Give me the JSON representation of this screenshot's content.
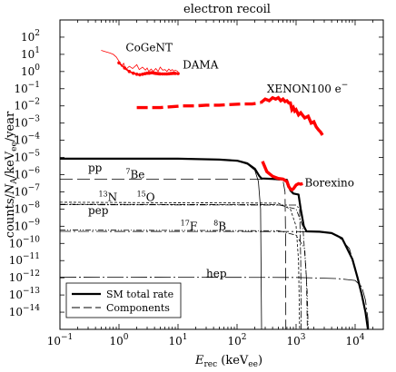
{
  "chart_data": {
    "type": "line",
    "title": "electron recoil",
    "xlabel": {
      "main": "E",
      "sub": "rec",
      "rest": " (keV",
      "unit_sub": "ee",
      "end": ")"
    },
    "ylabel": {
      "pre": "counts/",
      "n": "N",
      "sub": "A",
      "rest": "/keV",
      "unit_sub": "ee",
      "end": "/year"
    },
    "x_scale": "log",
    "y_scale": "log",
    "xlim": [
      0.1,
      30000
    ],
    "ylim": [
      1e-15,
      1000
    ],
    "x_ticks": [
      {
        "v": 0.1,
        "b": "10",
        "e": "−1"
      },
      {
        "v": 1,
        "b": "10",
        "e": "0"
      },
      {
        "v": 10,
        "b": "10",
        "e": "1"
      },
      {
        "v": 100,
        "b": "10",
        "e": "2"
      },
      {
        "v": 1000,
        "b": "10",
        "e": "3"
      },
      {
        "v": 10000,
        "b": "10",
        "e": "4"
      }
    ],
    "y_ticks": [
      {
        "v": 100,
        "b": "10",
        "e": "2"
      },
      {
        "v": 1,
        "b": "10",
        "e": "0"
      },
      {
        "v": 0.01,
        "b": "10",
        "e": "−2"
      },
      {
        "v": 0.0001,
        "b": "10",
        "e": "−4"
      },
      {
        "v": 1e-06,
        "b": "10",
        "e": "−6"
      },
      {
        "v": 1e-08,
        "b": "10",
        "e": "−8"
      },
      {
        "v": 1e-10,
        "b": "10",
        "e": "−10"
      },
      {
        "v": 1e-12,
        "b": "10",
        "e": "−12"
      },
      {
        "v": 1e-14,
        "b": "10",
        "e": "−14"
      }
    ],
    "y_ticks_plain": [
      {
        "v": 10,
        "t": "10"
      },
      {
        "v": 0.1,
        "t": "10"
      },
      {
        "v": 0.001,
        "t": "10"
      },
      {
        "v": 1e-05,
        "t": "10"
      },
      {
        "v": 1e-07,
        "t": "10"
      },
      {
        "v": 1e-09,
        "t": "10"
      },
      {
        "v": 1e-11,
        "t": "10"
      },
      {
        "v": 1e-13,
        "t": "10"
      }
    ],
    "y_ticks_plain_exp": [
      "1",
      "−1",
      "−3",
      "−5",
      "−7",
      "−9",
      "−11",
      "−13"
    ],
    "series": [
      {
        "name": "SM total rate",
        "style": "total",
        "color": "#000000",
        "points": [
          [
            0.1,
            8.5e-06
          ],
          [
            10,
            8.5e-06
          ],
          [
            50,
            7.5e-06
          ],
          [
            100,
            6.5e-06
          ],
          [
            150,
            4.5e-06
          ],
          [
            200,
            2.2e-06
          ],
          [
            240,
            8e-07
          ],
          [
            260,
            6e-07
          ],
          [
            500,
            5.5e-07
          ],
          [
            700,
            5e-07
          ],
          [
            800,
            1.2e-07
          ],
          [
            900,
            8e-08
          ],
          [
            1100,
            7e-08
          ],
          [
            1200,
            1e-08
          ],
          [
            1350,
            1e-09
          ],
          [
            1500,
            5e-10
          ],
          [
            2500,
            4.8e-10
          ],
          [
            4000,
            4e-10
          ],
          [
            6000,
            2e-10
          ],
          [
            9000,
            1.2e-11
          ],
          [
            11000,
            1e-12
          ],
          [
            13000,
            1e-13
          ],
          [
            15000,
            1e-14
          ],
          [
            16500,
            1e-15
          ]
        ]
      },
      {
        "name": "pp",
        "style": "component",
        "color": "#000000",
        "points": [
          [
            0.1,
            8.3e-06
          ],
          [
            10,
            8.3e-06
          ],
          [
            50,
            7.5e-06
          ],
          [
            100,
            6.3e-06
          ],
          [
            150,
            4e-06
          ],
          [
            200,
            1.8e-06
          ],
          [
            230,
            4e-07
          ],
          [
            250,
            1e-08
          ],
          [
            260,
            1e-15
          ]
        ]
      },
      {
        "name": "7Be",
        "style": "component",
        "color": "#000000",
        "points": [
          [
            0.1,
            5.5e-07
          ],
          [
            100,
            5.5e-07
          ],
          [
            400,
            5.3e-07
          ],
          [
            600,
            4.5e-07
          ],
          [
            650,
            1e-07
          ],
          [
            665,
            1e-10
          ],
          [
            670,
            1e-15
          ]
        ]
      },
      {
        "name": "13N",
        "style": "component",
        "color": "#000000",
        "points": [
          [
            0.1,
            2.5e-08
          ],
          [
            500,
            2.2e-08
          ],
          [
            800,
            1e-08
          ],
          [
            1000,
            1e-09
          ],
          [
            1100,
            1e-11
          ],
          [
            1150,
            1e-15
          ]
        ]
      },
      {
        "name": "15O",
        "style": "component",
        "color": "#000000",
        "points": [
          [
            0.1,
            1.9e-08
          ],
          [
            500,
            1.8e-08
          ],
          [
            1000,
            1e-08
          ],
          [
            1300,
            1e-09
          ],
          [
            1500,
            1e-12
          ],
          [
            1550,
            1e-15
          ]
        ]
      },
      {
        "name": "pep",
        "style": "component",
        "color": "#000000",
        "points": [
          [
            0.1,
            1.8e-08
          ],
          [
            1000,
            1.7e-08
          ],
          [
            1150,
            1e-08
          ],
          [
            1200,
            1e-11
          ],
          [
            1220,
            1e-15
          ]
        ]
      },
      {
        "name": "17F",
        "style": "component",
        "color": "#000000",
        "points": [
          [
            0.1,
            6e-10
          ],
          [
            500,
            5.5e-10
          ],
          [
            1000,
            3e-10
          ],
          [
            1400,
            5e-11
          ],
          [
            1550,
            1e-13
          ],
          [
            1600,
            1e-15
          ]
        ]
      },
      {
        "name": "8B",
        "style": "component",
        "color": "#000000",
        "points": [
          [
            0.1,
            5e-10
          ],
          [
            1000,
            4.9e-10
          ],
          [
            3000,
            4.5e-10
          ],
          [
            5000,
            3e-10
          ],
          [
            8000,
            5e-11
          ],
          [
            11000,
            1e-12
          ],
          [
            13000,
            1e-13
          ],
          [
            15000,
            1e-14
          ],
          [
            16500,
            1e-15
          ]
        ]
      },
      {
        "name": "hep",
        "style": "component",
        "color": "#000000",
        "points": [
          [
            0.1,
            1.1e-12
          ],
          [
            1000,
            1.05e-12
          ],
          [
            5000,
            9e-13
          ],
          [
            10000,
            7e-13
          ],
          [
            13000,
            3e-13
          ],
          [
            15000,
            5e-14
          ],
          [
            16500,
            4e-15
          ],
          [
            17000,
            1e-15
          ]
        ]
      },
      {
        "name": "CoGeNT",
        "style": "data-thin",
        "color": "#ff0000",
        "points": [
          [
            0.5,
            17
          ],
          [
            0.6,
            14
          ],
          [
            0.7,
            12
          ],
          [
            0.8,
            10
          ],
          [
            0.9,
            7
          ],
          [
            1.0,
            4
          ],
          [
            1.1,
            2
          ],
          [
            1.2,
            3
          ],
          [
            1.3,
            1.3
          ],
          [
            1.5,
            2
          ],
          [
            1.7,
            1.5
          ],
          [
            2.0,
            2.5
          ],
          [
            2.2,
            1.3
          ],
          [
            2.5,
            1.8
          ],
          [
            2.8,
            1.2
          ],
          [
            3.0,
            1.6
          ],
          [
            3.2,
            1.0
          ],
          [
            3.5,
            1.4
          ],
          [
            3.8,
            1.0
          ],
          [
            4.2,
            1.5
          ],
          [
            4.6,
            1.0
          ],
          [
            5.0,
            1.8
          ],
          [
            5.5,
            1.2
          ],
          [
            6.0,
            1.3
          ],
          [
            6.5,
            1.0
          ],
          [
            7.0,
            1.4
          ],
          [
            7.5,
            1.1
          ],
          [
            8.0,
            1.3
          ],
          [
            8.5,
            1.05
          ],
          [
            9.0,
            1.2
          ],
          [
            10.0,
            1.0
          ]
        ]
      },
      {
        "name": "DAMA",
        "style": "data-dots",
        "color": "#ff0000",
        "points": [
          [
            1.0,
            3.2
          ],
          [
            1.25,
            1.6
          ],
          [
            1.5,
            1.0
          ],
          [
            1.75,
            0.8
          ],
          [
            2.0,
            0.7
          ],
          [
            2.25,
            0.65
          ],
          [
            2.5,
            0.7
          ],
          [
            2.75,
            0.75
          ],
          [
            3.0,
            0.8
          ],
          [
            3.25,
            0.8
          ],
          [
            3.5,
            0.85
          ],
          [
            3.75,
            0.85
          ],
          [
            4.0,
            0.8
          ],
          [
            4.25,
            0.78
          ],
          [
            4.5,
            0.76
          ],
          [
            4.75,
            0.74
          ],
          [
            5.0,
            0.73
          ],
          [
            5.5,
            0.72
          ],
          [
            6.0,
            0.72
          ],
          [
            6.5,
            0.72
          ],
          [
            7.0,
            0.74
          ],
          [
            7.5,
            0.76
          ],
          [
            8.0,
            0.78
          ],
          [
            8.5,
            0.79
          ],
          [
            9.0,
            0.78
          ],
          [
            10.0,
            0.76
          ]
        ]
      },
      {
        "name": "XENON100 e⁻",
        "style": "data-thick",
        "color": "#ff0000",
        "points": [
          [
            2,
            0.008
          ],
          [
            3,
            0.008
          ],
          [
            5,
            0.008
          ],
          [
            8,
            0.009
          ],
          [
            12,
            0.01
          ],
          [
            20,
            0.01
          ],
          [
            30,
            0.011
          ],
          [
            50,
            0.011
          ],
          [
            80,
            0.012
          ],
          [
            120,
            0.013
          ],
          [
            180,
            0.013
          ],
          [
            250,
            0.015
          ],
          [
            300,
            0.025
          ],
          [
            350,
            0.02
          ],
          [
            400,
            0.03
          ],
          [
            450,
            0.025
          ],
          [
            500,
            0.03
          ],
          [
            550,
            0.02
          ],
          [
            600,
            0.025
          ],
          [
            650,
            0.018
          ],
          [
            700,
            0.02
          ],
          [
            750,
            0.015
          ],
          [
            800,
            0.015
          ],
          [
            850,
            0.006
          ],
          [
            900,
            0.008
          ],
          [
            950,
            0.005
          ],
          [
            1000,
            0.006
          ],
          [
            1100,
            0.003
          ],
          [
            1200,
            0.004
          ],
          [
            1400,
            0.002
          ],
          [
            1600,
            0.0025
          ],
          [
            1800,
            0.001
          ],
          [
            2000,
            0.0012
          ],
          [
            2200,
            0.0006
          ],
          [
            2400,
            0.0004
          ],
          [
            2600,
            0.0003
          ],
          [
            2800,
            0.0002
          ]
        ]
      },
      {
        "name": "Borexino",
        "style": "data-thick",
        "color": "#ff0000",
        "points": [
          [
            270,
            6e-06
          ],
          [
            320,
            1.5e-06
          ],
          [
            400,
            8e-07
          ],
          [
            500,
            6e-07
          ],
          [
            600,
            5.5e-07
          ],
          [
            700,
            4e-07
          ],
          [
            750,
            2e-07
          ],
          [
            800,
            1.5e-07
          ],
          [
            850,
            1.3e-07
          ],
          [
            900,
            1.5e-07
          ],
          [
            1000,
            2.5e-07
          ],
          [
            1100,
            3e-07
          ],
          [
            1200,
            2.8e-07
          ],
          [
            1300,
            3e-07
          ]
        ]
      }
    ],
    "legend": {
      "placement": "bottom-left",
      "entries": [
        {
          "label": "SM total rate",
          "style": "solid-thick"
        },
        {
          "label": "Components",
          "style": "dashed"
        }
      ]
    },
    "annotations": [
      {
        "key": "cogent",
        "text": "CoGeNT",
        "x": 1.3,
        "y": 15
      },
      {
        "key": "dama",
        "text": "DAMA",
        "x": 12,
        "y": 1.5
      },
      {
        "key": "xenon",
        "text": "XENON100 e",
        "sup": "−",
        "x": 320,
        "y": 0.06
      },
      {
        "key": "borexino",
        "text": "Borexino",
        "x": 1400,
        "y": 2e-07
      },
      {
        "key": "pp",
        "text": "pp",
        "x": 0.3,
        "y": 1.5e-06
      },
      {
        "key": "be7",
        "pre_sup": "7",
        "text": "Be",
        "x": 1.3,
        "y": 6e-07
      },
      {
        "key": "n13",
        "pre_sup": "13",
        "text": "N",
        "x": 0.45,
        "y": 3e-08
      },
      {
        "key": "o15",
        "pre_sup": "15",
        "text": "O",
        "x": 2.0,
        "y": 3e-08
      },
      {
        "key": "pep",
        "text": "pep",
        "x": 0.3,
        "y": 5e-09
      },
      {
        "key": "f17",
        "pre_sup": "17",
        "text": "F",
        "x": 11,
        "y": 6e-10
      },
      {
        "key": "b8",
        "pre_sup": "8",
        "text": "B",
        "x": 40,
        "y": 6e-10
      },
      {
        "key": "hep",
        "text": "hep",
        "x": 30,
        "y": 1.1e-12
      }
    ]
  }
}
